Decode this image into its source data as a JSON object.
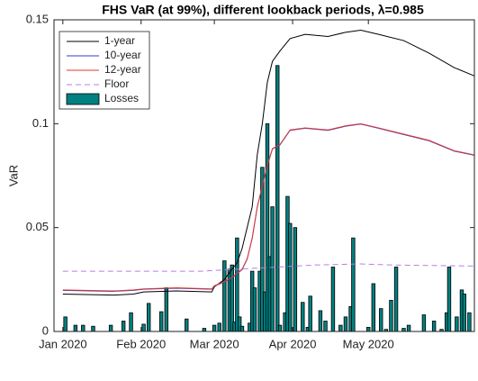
{
  "chart_data": {
    "type": "line",
    "title": "FHS VaR (at 99%), different lookback periods, λ=0.985",
    "y_label": "VaR",
    "xlim": [
      -3.5,
      163
    ],
    "xticks": [
      {
        "value": 0,
        "label": "Jan 2020"
      },
      {
        "value": 31,
        "label": "Feb 2020"
      },
      {
        "value": 60,
        "label": "Mar 2020"
      },
      {
        "value": 91,
        "label": "Apr 2020"
      },
      {
        "value": 121,
        "label": "May 2020"
      }
    ],
    "ylim": [
      0,
      0.15
    ],
    "yticks": [
      0,
      0.05,
      0.1,
      0.15
    ],
    "grid": false,
    "legend": "upper-left",
    "series": [
      {
        "name": "1-year",
        "type": "line",
        "color": "#000000",
        "linestyle": "solid",
        "x": [
          0,
          20,
          28,
          32,
          45,
          59,
          60,
          64,
          67,
          69,
          71,
          73,
          75,
          77,
          79,
          81,
          83,
          86,
          90,
          96,
          105,
          112,
          118,
          125,
          135,
          145,
          155,
          163
        ],
        "values": [
          0.018,
          0.0175,
          0.018,
          0.019,
          0.0195,
          0.019,
          0.0215,
          0.025,
          0.03,
          0.033,
          0.04,
          0.05,
          0.06,
          0.085,
          0.1,
          0.12,
          0.13,
          0.135,
          0.141,
          0.143,
          0.142,
          0.144,
          0.145,
          0.143,
          0.14,
          0.134,
          0.127,
          0.123
        ]
      },
      {
        "name": "10-year",
        "type": "line",
        "color": "#3a3ad0",
        "linestyle": "solid",
        "x": [
          0,
          20,
          28,
          32,
          45,
          59,
          60,
          64,
          67,
          69,
          71,
          73,
          75,
          77,
          79,
          81,
          83,
          86,
          90,
          96,
          105,
          112,
          118,
          125,
          135,
          145,
          155,
          163
        ],
        "values": [
          0.0198,
          0.0193,
          0.0198,
          0.0203,
          0.0208,
          0.0203,
          0.0218,
          0.0238,
          0.0258,
          0.0278,
          0.0298,
          0.0348,
          0.0448,
          0.0598,
          0.0698,
          0.0798,
          0.0878,
          0.0898,
          0.0968,
          0.0978,
          0.0968,
          0.0988,
          0.0998,
          0.0978,
          0.0948,
          0.0918,
          0.0868,
          0.0848
        ]
      },
      {
        "name": "12-year",
        "type": "line",
        "color": "#e03a2a",
        "linestyle": "solid",
        "x": [
          0,
          20,
          28,
          32,
          45,
          59,
          60,
          64,
          67,
          69,
          71,
          73,
          75,
          77,
          79,
          81,
          83,
          86,
          90,
          96,
          105,
          112,
          118,
          125,
          135,
          145,
          155,
          163
        ],
        "values": [
          0.02,
          0.0195,
          0.02,
          0.0205,
          0.021,
          0.0205,
          0.022,
          0.024,
          0.026,
          0.028,
          0.03,
          0.035,
          0.045,
          0.06,
          0.07,
          0.08,
          0.088,
          0.09,
          0.097,
          0.098,
          0.097,
          0.099,
          0.1,
          0.098,
          0.095,
          0.092,
          0.087,
          0.085
        ]
      },
      {
        "name": "Floor",
        "type": "line",
        "color": "#b87ee0",
        "linestyle": "dashed",
        "x": [
          0,
          55,
          62,
          85,
          100,
          118,
          130,
          163
        ],
        "values": [
          0.029,
          0.029,
          0.0295,
          0.031,
          0.032,
          0.0325,
          0.032,
          0.0315
        ]
      },
      {
        "name": "Losses",
        "type": "bar",
        "color": "#008080",
        "x": [
          1,
          5,
          8,
          12,
          19,
          24,
          27,
          32,
          34,
          39,
          41,
          49,
          56,
          60,
          62,
          64,
          66,
          67,
          68,
          69,
          70,
          71,
          74,
          75,
          76,
          78,
          79,
          80,
          81,
          82,
          83,
          85,
          86,
          88,
          89,
          90,
          92,
          95,
          97,
          98,
          102,
          104,
          107,
          110,
          112,
          114,
          115,
          121,
          123,
          126,
          128,
          130,
          132,
          135,
          137,
          143,
          147,
          150,
          152,
          153,
          156,
          158,
          159,
          161
        ],
        "values": [
          0.007,
          0.003,
          0.003,
          0.0025,
          0.003,
          0.005,
          0.009,
          0.0035,
          0.0135,
          0.0095,
          0.021,
          0.006,
          0.0015,
          0.003,
          0.004,
          0.034,
          0.03,
          0.032,
          0.0045,
          0.045,
          0.007,
          0.0025,
          0.004,
          0.029,
          0.021,
          0.029,
          0.079,
          0.019,
          0.1,
          0.036,
          0.06,
          0.128,
          0.003,
          0.009,
          0.065,
          0.052,
          0.05,
          0.014,
          0.002,
          0.017,
          0.01,
          0.005,
          0.031,
          0.003,
          0.007,
          0.012,
          0.045,
          0.002,
          0.023,
          0.011,
          0.001,
          0.015,
          0.031,
          0.0015,
          0.003,
          0.008,
          0.005,
          0.001,
          0.009,
          0.031,
          0.007,
          0.02,
          0.018,
          0.009
        ]
      }
    ]
  }
}
